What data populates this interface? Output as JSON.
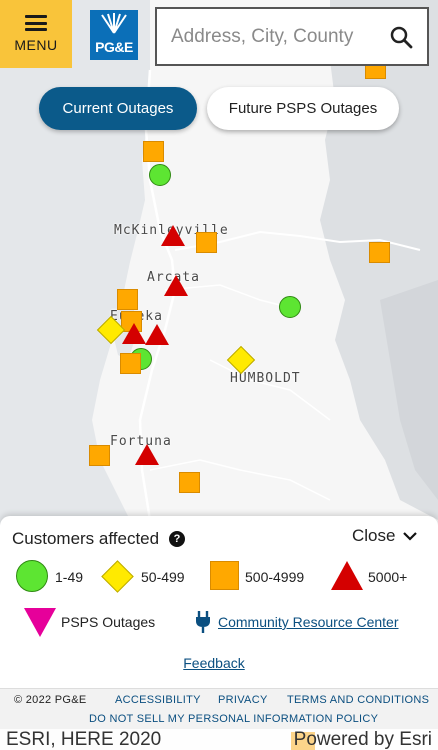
{
  "header": {
    "menu_label": "MENU",
    "logo_text": "PG&E",
    "search_placeholder": "Address, City, County"
  },
  "toggle": {
    "current_label": "Current Outages",
    "future_label": "Future PSPS Outages",
    "active": "Current Outages"
  },
  "map": {
    "towns": [
      {
        "label": "McKinleyville"
      },
      {
        "label": "Arcata"
      },
      {
        "label": "Eureka"
      },
      {
        "label": "HUMBOLDT"
      },
      {
        "label": "Fortuna"
      }
    ],
    "marker_colors": {
      "green": "#5de532",
      "yellow": "#ffea00",
      "orange": "#ffa800",
      "red": "#d40000",
      "pink": "#e6009a"
    }
  },
  "legend": {
    "title": "Customers affected",
    "help_icon": "question-circle-icon",
    "close_label": "Close",
    "items": [
      {
        "label": "1-49",
        "symbol": "green-circle"
      },
      {
        "label": "50-499",
        "symbol": "yellow-diamond"
      },
      {
        "label": "500-4999",
        "symbol": "orange-square"
      },
      {
        "label": "5000+",
        "symbol": "red-triangle"
      },
      {
        "label": "PSPS Outages",
        "symbol": "pink-inverted-triangle"
      }
    ],
    "resource_link": "Community Resource Center",
    "feedback_link": "Feedback"
  },
  "footer": {
    "copyright": "© 2022 PG&E",
    "accessibility": "ACCESSIBILITY",
    "privacy": "PRIVACY",
    "terms": "TERMS AND CONDITIONS",
    "do_not_sell": "DO NOT SELL MY PERSONAL INFORMATION POLICY"
  },
  "attribution": {
    "left": "ESRI, HERE 2020",
    "right": "Powered by Esri"
  },
  "colors": {
    "brand_blue": "#0b6fb8",
    "menu_yellow": "#f9c43a",
    "active_button": "#0b5a8a",
    "link": "#0b4f80"
  }
}
